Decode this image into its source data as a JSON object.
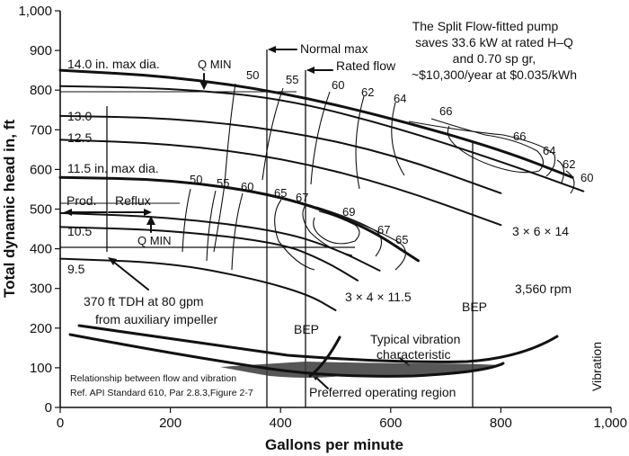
{
  "chart_data": {
    "type": "line",
    "xlabel": "Gallons per minute",
    "ylabel": "Total dynamic head in, ft",
    "xlim": [
      0,
      1000
    ],
    "ylim": [
      0,
      1000
    ],
    "x_ticks": [
      "0",
      "200",
      "400",
      "600",
      "800",
      "1,000"
    ],
    "y_ticks": [
      "0",
      "100",
      "200",
      "300",
      "400",
      "500",
      "600",
      "700",
      "800",
      "900",
      "1,000"
    ],
    "x_tick_values": [
      0,
      200,
      400,
      600,
      800,
      1000
    ],
    "y_tick_values": [
      0,
      100,
      200,
      300,
      400,
      500,
      600,
      700,
      800,
      900,
      1000
    ],
    "series": [
      {
        "name": "14.0 in. max dia.",
        "x": [
          0,
          200,
          400,
          600,
          800,
          930
        ],
        "y": [
          850,
          835,
          795,
          730,
          650,
          580
        ]
      },
      {
        "name": "13.0",
        "x": [
          0,
          200,
          400,
          600,
          800,
          950
        ],
        "y": [
          810,
          805,
          780,
          710,
          620,
          545
        ]
      },
      {
        "name": "12.5",
        "x": [
          0,
          200,
          400,
          600,
          800
        ],
        "y": [
          735,
          730,
          700,
          640,
          540
        ]
      },
      {
        "name": "",
        "x": [
          0,
          200,
          400,
          600,
          800
        ],
        "y": [
          675,
          665,
          630,
          560,
          460
        ]
      },
      {
        "name": "11.5 in. max dia.",
        "x": [
          0,
          200,
          400,
          550,
          650
        ],
        "y": [
          580,
          575,
          535,
          460,
          370
        ]
      },
      {
        "name": "",
        "x": [
          0,
          200,
          400,
          500,
          580
        ],
        "y": [
          490,
          480,
          445,
          400,
          345
        ]
      },
      {
        "name": "10.5",
        "x": [
          0,
          200,
          400,
          480,
          540
        ],
        "y": [
          455,
          447,
          415,
          370,
          320
        ]
      },
      {
        "name": "9.5",
        "x": [
          0,
          200,
          350,
          450,
          500
        ],
        "y": [
          375,
          365,
          325,
          285,
          245
        ]
      }
    ],
    "annotations": [
      "The Split Flow-fitted pump",
      "saves 33.6 kW at rated H–Q",
      "and 0.70 sp gr,",
      "~$10,300/year at $0.035/kWh",
      "Normal max",
      "Rated flow",
      "Q MIN",
      "Prod.",
      "Reflux",
      "3 × 6 × 14",
      "3 × 4 × 11.5",
      "3,560 rpm",
      "BEP",
      "370 ft TDH at 80 gpm",
      "from auxiliary impeller",
      "Typical vibration",
      "characteristic",
      "Preferred operating region",
      "Relationship between flow and vibration",
      "Ref. API Standard 610, Par 2.8.3,Figure 2-7",
      "Vibration"
    ],
    "efficiency_labels_large": [
      "50",
      "55",
      "60",
      "62",
      "64",
      "66",
      "66",
      "64",
      "62",
      "60"
    ],
    "efficiency_labels_small": [
      "50",
      "55",
      "60",
      "65",
      "67",
      "69",
      "67",
      "65"
    ],
    "vertical_lines_gpm": {
      "normal_max": 380,
      "rated_flow": 450,
      "bep_small": 450,
      "bep_large": 760
    },
    "grid": false,
    "legend": "none"
  }
}
